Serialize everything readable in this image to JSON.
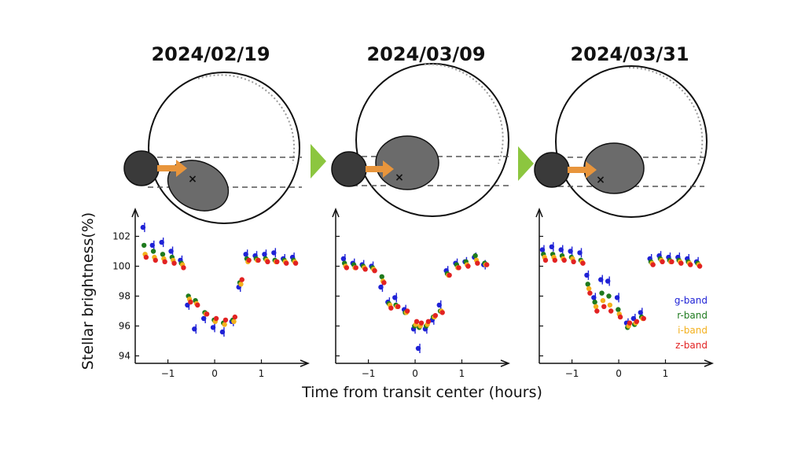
{
  "figure": {
    "ylabel": "Stellar brightness(%)",
    "xlabel": "Time from transit center (hours)",
    "colors": {
      "g-band": "#1f22d6",
      "r-band": "#1e7a1e",
      "i-band": "#f3b01c",
      "z-band": "#e22222",
      "arrow": "#e8953c",
      "chevron": "#8cc63f",
      "companion": "#3a3a3a",
      "spot": "#6b6b6b"
    }
  },
  "legend": [
    {
      "label": "g-band",
      "color": "#1f22d6"
    },
    {
      "label": "r-band",
      "color": "#1e7a1e"
    },
    {
      "label": "i-band",
      "color": "#f3b01c"
    },
    {
      "label": "z-band",
      "color": "#e22222"
    }
  ],
  "chart_data": [
    {
      "type": "scatter",
      "title": "2024/02/19",
      "xlim": [
        -1.7,
        1.9
      ],
      "ylim": [
        93.5,
        103.5
      ],
      "xticks": [
        -1,
        0,
        1
      ],
      "xtick_labels": [
        "−1",
        "0",
        "1"
      ],
      "yticks": [
        94,
        96,
        98,
        100,
        102
      ],
      "ytick_labels": [
        "94",
        "96",
        "98",
        "100",
        "102"
      ],
      "series": [
        {
          "name": "g-band",
          "x": [
            -1.5,
            -1.3,
            -1.1,
            -0.9,
            -0.7,
            -0.55,
            -0.4,
            -0.2,
            0.0,
            0.2,
            0.4,
            0.55,
            0.7,
            0.9,
            1.1,
            1.3,
            1.5,
            1.7
          ],
          "y": [
            102.6,
            101.4,
            101.6,
            101.0,
            100.4,
            97.4,
            95.8,
            96.5,
            95.9,
            95.6,
            96.3,
            98.6,
            100.8,
            100.7,
            100.8,
            100.9,
            100.5,
            100.6
          ]
        },
        {
          "name": "r-band",
          "x": [
            -1.5,
            -1.3,
            -1.1,
            -0.9,
            -0.7,
            -0.55,
            -0.4,
            -0.2,
            0.0,
            0.2,
            0.4,
            0.55,
            0.7,
            0.9,
            1.1,
            1.3,
            1.5,
            1.7
          ],
          "y": [
            101.4,
            101.0,
            100.8,
            100.6,
            100.2,
            98.0,
            97.7,
            96.9,
            96.4,
            96.2,
            96.4,
            98.9,
            100.5,
            100.5,
            100.5,
            100.4,
            100.4,
            100.4
          ]
        },
        {
          "name": "i-band",
          "x": [
            -1.5,
            -1.3,
            -1.1,
            -0.9,
            -0.7,
            -0.55,
            -0.4,
            -0.2,
            0.0,
            0.2,
            0.4,
            0.55,
            0.7,
            0.9,
            1.1,
            1.3,
            1.5,
            1.7
          ],
          "y": [
            100.8,
            100.6,
            100.5,
            100.4,
            100.1,
            97.8,
            97.5,
            96.8,
            96.3,
            96.1,
            96.3,
            98.8,
            100.3,
            100.4,
            100.4,
            100.3,
            100.3,
            100.3
          ]
        },
        {
          "name": "z-band",
          "x": [
            -1.5,
            -1.3,
            -1.1,
            -0.9,
            -0.7,
            -0.55,
            -0.4,
            -0.2,
            0.0,
            0.2,
            0.4,
            0.55,
            0.7,
            0.9,
            1.1,
            1.3,
            1.5,
            1.7
          ],
          "y": [
            100.6,
            100.4,
            100.3,
            100.2,
            99.9,
            97.6,
            97.4,
            96.8,
            96.5,
            96.4,
            96.6,
            99.1,
            100.4,
            100.4,
            100.3,
            100.3,
            100.2,
            100.2
          ]
        }
      ]
    },
    {
      "type": "scatter",
      "title": "2024/03/09",
      "xlim": [
        -1.7,
        1.9
      ],
      "ylim": [
        93.5,
        103.5
      ],
      "xticks": [
        -1,
        0,
        1
      ],
      "xtick_labels": [
        "−1",
        "0",
        "1"
      ],
      "yticks": [
        94,
        96,
        98,
        100,
        102
      ],
      "ytick_labels": [
        "94",
        "96",
        "98",
        "100",
        "102"
      ],
      "series": [
        {
          "name": "g-band",
          "x": [
            -1.5,
            -1.3,
            -1.1,
            -0.9,
            -0.7,
            -0.55,
            -0.4,
            -0.2,
            0.0,
            0.1,
            0.25,
            0.4,
            0.55,
            0.7,
            0.9,
            1.1,
            1.3,
            1.5
          ],
          "y": [
            100.5,
            100.2,
            100.1,
            100.0,
            98.6,
            97.6,
            97.9,
            97.1,
            95.8,
            94.5,
            95.8,
            96.4,
            97.4,
            99.7,
            100.2,
            100.3,
            100.6,
            100.1
          ]
        },
        {
          "name": "r-band",
          "x": [
            -1.5,
            -1.3,
            -1.1,
            -0.9,
            -0.7,
            -0.55,
            -0.4,
            -0.2,
            0.0,
            0.1,
            0.25,
            0.4,
            0.55,
            0.7,
            0.9,
            1.1,
            1.3,
            1.5
          ],
          "y": [
            100.2,
            100.1,
            100.0,
            99.9,
            99.3,
            97.5,
            97.4,
            96.9,
            96.0,
            95.9,
            96.0,
            96.6,
            97.0,
            99.5,
            100.1,
            100.3,
            100.7,
            100.2
          ]
        },
        {
          "name": "i-band",
          "x": [
            -1.5,
            -1.3,
            -1.1,
            -0.9,
            -0.7,
            -0.55,
            -0.4,
            -0.2,
            0.0,
            0.1,
            0.25,
            0.4,
            0.55,
            0.7,
            0.9,
            1.1,
            1.3,
            1.5
          ],
          "y": [
            100.0,
            99.9,
            99.9,
            99.8,
            99.0,
            97.4,
            97.3,
            96.9,
            96.1,
            96.0,
            96.1,
            96.6,
            97.0,
            99.4,
            99.9,
            100.1,
            100.4,
            100.1
          ]
        },
        {
          "name": "z-band",
          "x": [
            -1.5,
            -1.3,
            -1.1,
            -0.9,
            -0.7,
            -0.55,
            -0.4,
            -0.2,
            0.0,
            0.1,
            0.25,
            0.4,
            0.55,
            0.7,
            0.9,
            1.1,
            1.3,
            1.5
          ],
          "y": [
            99.9,
            99.9,
            99.8,
            99.7,
            98.9,
            97.2,
            97.3,
            97.0,
            96.3,
            96.2,
            96.3,
            96.7,
            96.9,
            99.4,
            99.9,
            100.0,
            100.2,
            100.1
          ]
        }
      ]
    },
    {
      "type": "scatter",
      "title": "2024/03/31",
      "xlim": [
        -1.7,
        1.9
      ],
      "ylim": [
        93.5,
        103.5
      ],
      "xticks": [
        -1,
        0,
        1
      ],
      "xtick_labels": [
        "−1",
        "0",
        "1"
      ],
      "yticks": [
        94,
        96,
        98,
        100,
        102
      ],
      "ytick_labels": [
        "94",
        "96",
        "98",
        "100",
        "102"
      ],
      "series": [
        {
          "name": "g-band",
          "x": [
            -1.6,
            -1.4,
            -1.2,
            -1.0,
            -0.8,
            -0.65,
            -0.5,
            -0.35,
            -0.2,
            0.0,
            0.2,
            0.35,
            0.5,
            0.7,
            0.9,
            1.1,
            1.3,
            1.5,
            1.7
          ],
          "y": [
            101.1,
            101.3,
            101.1,
            101.0,
            100.9,
            99.4,
            97.9,
            99.1,
            99.0,
            97.9,
            96.2,
            96.5,
            96.9,
            100.5,
            100.7,
            100.6,
            100.6,
            100.5,
            100.3
          ]
        },
        {
          "name": "r-band",
          "x": [
            -1.6,
            -1.4,
            -1.2,
            -1.0,
            -0.8,
            -0.65,
            -0.5,
            -0.35,
            -0.2,
            0.0,
            0.2,
            0.35,
            0.5,
            0.7,
            0.9,
            1.1,
            1.3,
            1.5,
            1.7
          ],
          "y": [
            100.8,
            100.8,
            100.7,
            100.6,
            100.4,
            98.8,
            97.6,
            98.2,
            98.0,
            97.1,
            95.9,
            96.1,
            96.6,
            100.3,
            100.5,
            100.4,
            100.4,
            100.3,
            100.2
          ]
        },
        {
          "name": "i-band",
          "x": [
            -1.6,
            -1.4,
            -1.2,
            -1.0,
            -0.8,
            -0.65,
            -0.5,
            -0.35,
            -0.2,
            0.0,
            0.2,
            0.35,
            0.5,
            0.7,
            0.9,
            1.1,
            1.3,
            1.5,
            1.7
          ],
          "y": [
            100.6,
            100.6,
            100.5,
            100.5,
            100.3,
            98.5,
            97.3,
            97.7,
            97.4,
            96.8,
            96.0,
            96.2,
            96.5,
            100.2,
            100.4,
            100.3,
            100.3,
            100.2,
            100.1
          ]
        },
        {
          "name": "z-band",
          "x": [
            -1.6,
            -1.4,
            -1.2,
            -1.0,
            -0.8,
            -0.65,
            -0.5,
            -0.35,
            -0.2,
            0.0,
            0.2,
            0.35,
            0.5,
            0.7,
            0.9,
            1.1,
            1.3,
            1.5,
            1.7
          ],
          "y": [
            100.4,
            100.4,
            100.4,
            100.3,
            100.2,
            98.2,
            97.0,
            97.3,
            97.0,
            96.6,
            96.2,
            96.3,
            96.5,
            100.1,
            100.3,
            100.3,
            100.2,
            100.1,
            100.0
          ]
        }
      ]
    }
  ]
}
